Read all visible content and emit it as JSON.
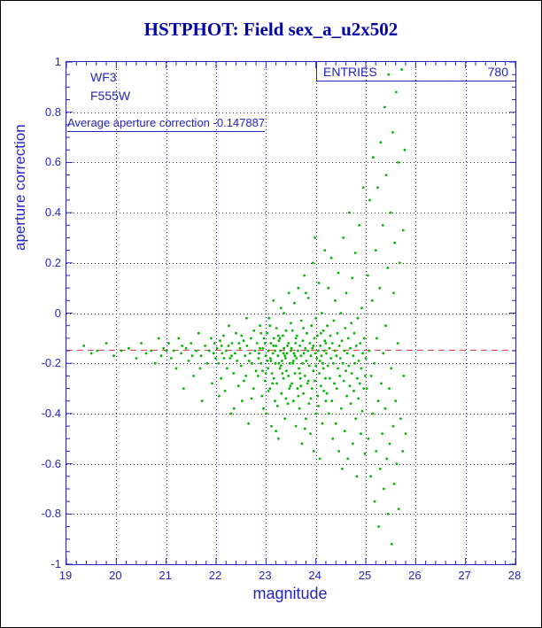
{
  "page": {
    "title": "HSTPHOT: Field sex_a_u2x502"
  },
  "plot": {
    "camera": "WF3",
    "filter": "F555W",
    "avg_text": "Average aperture correction -0.147887"
  },
  "stats_box": {
    "label": "ENTRIES",
    "value": "780"
  },
  "colors": {
    "title": "#0000a6",
    "axis": "#2323c0",
    "grid": "#2323c0",
    "points": "#00b400",
    "refline": "#e03333"
  },
  "chart_data": {
    "type": "scatter",
    "title": "HSTPHOT: Field sex_a_u2x502",
    "xlabel": "magnitude",
    "ylabel": "aperture correction",
    "xlim": [
      19,
      28
    ],
    "ylim": [
      -1,
      1
    ],
    "x_ticks": [
      19,
      20,
      21,
      22,
      23,
      24,
      25,
      26,
      27,
      28
    ],
    "y_ticks": [
      1,
      0.8,
      0.6,
      0.4,
      0.2,
      0,
      -0.2,
      -0.4,
      -0.6,
      -0.8,
      -1
    ],
    "y_tick_labels": [
      "1",
      "0.8",
      "0.6",
      "0.4",
      "0.2",
      "0",
      "-0.2",
      "-0.4",
      "-0.6",
      "-0.8",
      "-1"
    ],
    "grid": "dotted",
    "legend": "none",
    "entries": 780,
    "average_aperture_correction": -0.147887,
    "reference_line": {
      "y": -0.147887,
      "style": "dashed"
    },
    "points": [
      [
        19.35,
        -0.13
      ],
      [
        19.5,
        -0.16
      ],
      [
        19.62,
        -0.15
      ],
      [
        19.8,
        -0.12
      ],
      [
        19.95,
        -0.17
      ],
      [
        20.1,
        -0.15
      ],
      [
        20.25,
        -0.14
      ],
      [
        20.4,
        -0.18
      ],
      [
        20.5,
        -0.12
      ],
      [
        20.6,
        -0.16
      ],
      [
        20.7,
        -0.15
      ],
      [
        20.78,
        -0.2
      ],
      [
        20.85,
        -0.1
      ],
      [
        20.9,
        -0.17
      ],
      [
        20.95,
        -0.14
      ],
      [
        21.0,
        -0.15
      ],
      [
        21.05,
        -0.12
      ],
      [
        21.1,
        -0.18
      ],
      [
        21.15,
        -0.15
      ],
      [
        21.2,
        -0.22
      ],
      [
        21.25,
        -0.1
      ],
      [
        21.3,
        -0.16
      ],
      [
        21.35,
        -0.3
      ],
      [
        21.4,
        -0.14
      ],
      [
        21.45,
        -0.19
      ],
      [
        21.5,
        -0.12
      ],
      [
        21.55,
        -0.25
      ],
      [
        21.6,
        -0.15
      ],
      [
        21.65,
        -0.08
      ],
      [
        21.7,
        -0.17
      ],
      [
        21.72,
        -0.35
      ],
      [
        21.78,
        -0.13
      ],
      [
        21.82,
        -0.2
      ],
      [
        21.86,
        -0.15
      ],
      [
        21.9,
        -0.1
      ],
      [
        21.92,
        -0.28
      ],
      [
        21.95,
        -0.16
      ],
      [
        21.97,
        -0.12
      ],
      [
        21.99,
        -0.18
      ],
      [
        21.52,
        -0.17
      ],
      [
        21.32,
        -0.13
      ],
      [
        21.68,
        -0.22
      ],
      [
        22.02,
        -0.14
      ],
      [
        22.05,
        -0.2
      ],
      [
        22.08,
        -0.11
      ],
      [
        22.1,
        -0.26
      ],
      [
        22.12,
        -0.16
      ],
      [
        22.15,
        -0.09
      ],
      [
        22.18,
        -0.31
      ],
      [
        22.2,
        -0.15
      ],
      [
        22.22,
        -0.22
      ],
      [
        22.25,
        -0.13
      ],
      [
        22.28,
        -0.18
      ],
      [
        22.3,
        -0.4
      ],
      [
        22.32,
        -0.12
      ],
      [
        22.35,
        -0.24
      ],
      [
        22.38,
        -0.16
      ],
      [
        22.4,
        -0.08
      ],
      [
        22.42,
        -0.19
      ],
      [
        22.45,
        -0.29
      ],
      [
        22.48,
        -0.14
      ],
      [
        22.5,
        -0.21
      ],
      [
        22.52,
        -0.35
      ],
      [
        22.55,
        -0.11
      ],
      [
        22.58,
        -0.17
      ],
      [
        22.6,
        -0.25
      ],
      [
        22.62,
        -0.13
      ],
      [
        22.65,
        -0.44
      ],
      [
        22.68,
        -0.16
      ],
      [
        22.7,
        -0.1
      ],
      [
        22.72,
        -0.2
      ],
      [
        22.75,
        -0.3
      ],
      [
        22.78,
        -0.15
      ],
      [
        22.8,
        -0.23
      ],
      [
        22.06,
        -0.33
      ],
      [
        22.16,
        -0.18
      ],
      [
        22.26,
        -0.05
      ],
      [
        22.36,
        -0.38
      ],
      [
        22.46,
        -0.12
      ],
      [
        22.56,
        -0.27
      ],
      [
        22.66,
        -0.19
      ],
      [
        22.76,
        -0.07
      ],
      [
        22.11,
        -0.13
      ],
      [
        22.31,
        -0.17
      ],
      [
        22.51,
        -0.09
      ],
      [
        22.71,
        -0.34
      ],
      [
        22.61,
        -0.02
      ],
      [
        22.82,
        -0.12
      ],
      [
        22.84,
        -0.25
      ],
      [
        22.86,
        -0.16
      ],
      [
        22.88,
        -0.05
      ],
      [
        22.9,
        -0.2
      ],
      [
        22.92,
        -0.33
      ],
      [
        22.94,
        -0.14
      ],
      [
        22.96,
        -0.1
      ],
      [
        22.98,
        -0.27
      ],
      [
        23.0,
        -0.17
      ],
      [
        23.01,
        -0.4
      ],
      [
        23.02,
        -0.08
      ],
      [
        23.04,
        -0.22
      ],
      [
        23.05,
        -0.15
      ],
      [
        23.06,
        -0.02
      ],
      [
        23.08,
        -0.3
      ],
      [
        23.09,
        -0.18
      ],
      [
        23.1,
        -0.12
      ],
      [
        23.11,
        -0.45
      ],
      [
        23.12,
        -0.24
      ],
      [
        23.14,
        -0.16
      ],
      [
        23.15,
        0.05
      ],
      [
        23.16,
        -0.1
      ],
      [
        23.18,
        -0.35
      ],
      [
        23.19,
        -0.2
      ],
      [
        23.2,
        -0.13
      ],
      [
        23.21,
        -0.06
      ],
      [
        23.22,
        -0.28
      ],
      [
        23.24,
        -0.17
      ],
      [
        23.25,
        -0.5
      ],
      [
        23.26,
        -0.11
      ],
      [
        23.28,
        -0.22
      ],
      [
        23.29,
        -0.15
      ],
      [
        23.3,
        0.02
      ],
      [
        23.31,
        -0.32
      ],
      [
        23.32,
        -0.19
      ],
      [
        23.34,
        -0.09
      ],
      [
        23.35,
        -0.26
      ],
      [
        23.36,
        -0.14
      ],
      [
        23.38,
        -0.42
      ],
      [
        23.39,
        -0.18
      ],
      [
        23.4,
        -0.07
      ],
      [
        23.41,
        -0.23
      ],
      [
        23.42,
        -0.16
      ],
      [
        23.44,
        -0.36
      ],
      [
        23.45,
        -0.12
      ],
      [
        23.46,
        0.08
      ],
      [
        23.48,
        -0.2
      ],
      [
        23.49,
        -0.29
      ],
      [
        23.5,
        -0.15
      ],
      [
        22.85,
        -0.18
      ],
      [
        22.9,
        -0.08
      ],
      [
        22.95,
        -0.38
      ],
      [
        23.0,
        -0.24
      ],
      [
        23.05,
        -0.31
      ],
      [
        23.1,
        -0.19
      ],
      [
        23.15,
        -0.13
      ],
      [
        23.2,
        -0.47
      ],
      [
        23.25,
        -0.09
      ],
      [
        23.3,
        -0.21
      ],
      [
        23.35,
        -0.16
      ],
      [
        23.4,
        -0.34
      ],
      [
        23.45,
        -0.25
      ],
      [
        23.5,
        -0.04
      ],
      [
        22.88,
        -0.14
      ],
      [
        22.93,
        -0.23
      ],
      [
        22.98,
        -0.12
      ],
      [
        23.03,
        -0.19
      ],
      [
        23.08,
        -0.05
      ],
      [
        23.13,
        -0.28
      ],
      [
        23.18,
        -0.15
      ],
      [
        23.23,
        -0.37
      ],
      [
        23.28,
        -0.1
      ],
      [
        23.33,
        -0.24
      ],
      [
        23.38,
        -0.17
      ],
      [
        23.43,
        -0.13
      ],
      [
        23.47,
        -0.3
      ],
      [
        23.36,
        0.0
      ],
      [
        23.26,
        -0.2
      ],
      [
        23.16,
        -0.26
      ],
      [
        23.51,
        -0.14
      ],
      [
        23.52,
        -0.28
      ],
      [
        23.53,
        -0.07
      ],
      [
        23.54,
        -0.2
      ],
      [
        23.55,
        -0.35
      ],
      [
        23.56,
        -0.16
      ],
      [
        23.57,
        0.04
      ],
      [
        23.58,
        -0.24
      ],
      [
        23.59,
        -0.12
      ],
      [
        23.6,
        -0.45
      ],
      [
        23.61,
        -0.18
      ],
      [
        23.62,
        -0.09
      ],
      [
        23.63,
        -0.3
      ],
      [
        23.64,
        -0.15
      ],
      [
        23.65,
        0.1
      ],
      [
        23.66,
        -0.22
      ],
      [
        23.67,
        -0.38
      ],
      [
        23.68,
        -0.13
      ],
      [
        23.69,
        -0.26
      ],
      [
        23.7,
        -0.17
      ],
      [
        23.71,
        -0.03
      ],
      [
        23.72,
        -0.52
      ],
      [
        23.73,
        -0.2
      ],
      [
        23.74,
        -0.11
      ],
      [
        23.75,
        -0.32
      ],
      [
        23.76,
        -0.16
      ],
      [
        23.77,
        0.15
      ],
      [
        23.78,
        -0.25
      ],
      [
        23.79,
        -0.14
      ],
      [
        23.8,
        -0.42
      ],
      [
        23.81,
        -0.19
      ],
      [
        23.82,
        -0.08
      ],
      [
        23.83,
        -0.28
      ],
      [
        23.84,
        -0.15
      ],
      [
        23.85,
        0.06
      ],
      [
        23.86,
        -0.36
      ],
      [
        23.87,
        -0.21
      ],
      [
        23.88,
        -0.12
      ],
      [
        23.89,
        -0.48
      ],
      [
        23.9,
        -0.17
      ],
      [
        23.91,
        -0.05
      ],
      [
        23.92,
        -0.3
      ],
      [
        23.93,
        -0.14
      ],
      [
        23.94,
        0.2
      ],
      [
        23.95,
        -0.23
      ],
      [
        23.96,
        -0.55
      ],
      [
        23.97,
        -0.1
      ],
      [
        23.98,
        -0.27
      ],
      [
        23.99,
        -0.16
      ],
      [
        24.0,
        -0.02
      ],
      [
        24.01,
        -0.4
      ],
      [
        24.02,
        -0.18
      ],
      [
        24.03,
        -0.09
      ],
      [
        24.04,
        -0.33
      ],
      [
        24.05,
        -0.15
      ],
      [
        24.06,
        0.12
      ],
      [
        24.07,
        -0.24
      ],
      [
        24.08,
        -0.58
      ],
      [
        24.09,
        -0.13
      ],
      [
        24.1,
        -0.29
      ],
      [
        24.11,
        -0.17
      ],
      [
        24.12,
        0.0
      ],
      [
        24.13,
        -0.44
      ],
      [
        24.14,
        -0.2
      ],
      [
        24.15,
        -0.07
      ],
      [
        24.16,
        -0.31
      ],
      [
        24.17,
        -0.15
      ],
      [
        24.18,
        0.25
      ],
      [
        24.19,
        -0.26
      ],
      [
        24.2,
        -0.12
      ],
      [
        23.55,
        -0.19
      ],
      [
        23.65,
        -0.33
      ],
      [
        23.75,
        -0.06
      ],
      [
        23.85,
        -0.27
      ],
      [
        23.95,
        -0.13
      ],
      [
        24.05,
        -0.37
      ],
      [
        24.15,
        -0.22
      ],
      [
        23.6,
        -0.1
      ],
      [
        23.7,
        -0.29
      ],
      [
        23.8,
        0.08
      ],
      [
        23.9,
        -0.34
      ],
      [
        24.0,
        -0.21
      ],
      [
        24.1,
        -0.08
      ],
      [
        24.2,
        -0.35
      ],
      [
        23.58,
        -0.17
      ],
      [
        23.78,
        -0.46
      ],
      [
        23.98,
        0.3
      ],
      [
        24.08,
        -0.19
      ],
      [
        24.18,
        -0.11
      ],
      [
        23.68,
        -0.24
      ],
      [
        24.21,
        -0.16
      ],
      [
        24.22,
        -0.32
      ],
      [
        24.23,
        -0.05
      ],
      [
        24.24,
        -0.21
      ],
      [
        24.25,
        0.1
      ],
      [
        24.26,
        -0.4
      ],
      [
        24.27,
        -0.14
      ],
      [
        24.28,
        -0.26
      ],
      [
        24.29,
        -0.09
      ],
      [
        24.3,
        -0.18
      ],
      [
        24.31,
        0.22
      ],
      [
        24.32,
        -0.35
      ],
      [
        24.33,
        -0.12
      ],
      [
        24.34,
        -0.5
      ],
      [
        24.35,
        -0.2
      ],
      [
        24.36,
        -0.03
      ],
      [
        24.37,
        -0.28
      ],
      [
        24.38,
        -0.15
      ],
      [
        24.39,
        0.05
      ],
      [
        24.4,
        -0.44
      ],
      [
        24.41,
        -0.17
      ],
      [
        24.42,
        -0.3
      ],
      [
        24.43,
        -0.08
      ],
      [
        24.44,
        -0.22
      ],
      [
        24.45,
        0.16
      ],
      [
        24.46,
        -0.55
      ],
      [
        24.47,
        -0.13
      ],
      [
        24.48,
        -0.25
      ],
      [
        24.49,
        -0.18
      ],
      [
        24.5,
        0.0
      ],
      [
        24.51,
        -0.38
      ],
      [
        24.52,
        -0.11
      ],
      [
        24.53,
        -0.62
      ],
      [
        24.54,
        -0.2
      ],
      [
        24.55,
        0.3
      ],
      [
        24.56,
        -0.27
      ],
      [
        24.57,
        -0.15
      ],
      [
        24.58,
        -0.47
      ],
      [
        24.59,
        -0.06
      ],
      [
        24.6,
        -0.23
      ],
      [
        24.61,
        0.08
      ],
      [
        24.62,
        -0.33
      ],
      [
        24.63,
        -0.16
      ],
      [
        24.64,
        -0.58
      ],
      [
        24.65,
        -0.1
      ],
      [
        24.66,
        -0.21
      ],
      [
        24.67,
        0.4
      ],
      [
        24.68,
        -0.29
      ],
      [
        24.69,
        -0.14
      ],
      [
        24.7,
        -0.36
      ],
      [
        24.71,
        -0.04
      ],
      [
        24.72,
        -0.24
      ],
      [
        24.73,
        0.14
      ],
      [
        24.74,
        -0.52
      ],
      [
        24.75,
        -0.17
      ],
      [
        24.76,
        -0.31
      ],
      [
        24.77,
        -0.08
      ],
      [
        24.78,
        -0.2
      ],
      [
        24.79,
        0.24
      ],
      [
        24.8,
        -0.42
      ],
      [
        24.81,
        -0.13
      ],
      [
        24.82,
        -0.65
      ],
      [
        24.83,
        -0.26
      ],
      [
        24.84,
        -0.02
      ],
      [
        24.85,
        -0.34
      ],
      [
        24.86,
        -0.19
      ],
      [
        24.87,
        0.35
      ],
      [
        24.88,
        -0.28
      ],
      [
        24.89,
        -0.12
      ],
      [
        24.9,
        -0.48
      ],
      [
        24.91,
        -0.22
      ],
      [
        24.92,
        0.02
      ],
      [
        24.93,
        -0.39
      ],
      [
        24.94,
        -0.16
      ],
      [
        24.95,
        0.5
      ],
      [
        24.96,
        -0.3
      ],
      [
        24.97,
        -0.1
      ],
      [
        24.98,
        -0.56
      ],
      [
        24.99,
        -0.25
      ],
      [
        25.0,
        -0.18
      ],
      [
        25.02,
        -0.3
      ],
      [
        25.04,
        0.15
      ],
      [
        25.05,
        -0.5
      ],
      [
        25.07,
        -0.15
      ],
      [
        25.08,
        0.45
      ],
      [
        25.1,
        -0.65
      ],
      [
        25.11,
        -0.25
      ],
      [
        25.13,
        0.05
      ],
      [
        25.14,
        -0.4
      ],
      [
        25.15,
        0.62
      ],
      [
        25.17,
        -0.2
      ],
      [
        25.18,
        -0.75
      ],
      [
        25.2,
        0.25
      ],
      [
        25.21,
        -0.55
      ],
      [
        25.22,
        -0.1
      ],
      [
        25.24,
        0.5
      ],
      [
        25.25,
        -0.35
      ],
      [
        25.26,
        -0.85
      ],
      [
        25.28,
        0.1
      ],
      [
        25.29,
        -0.62
      ],
      [
        25.3,
        0.68
      ],
      [
        25.31,
        -0.28
      ],
      [
        25.33,
        -0.48
      ],
      [
        25.34,
        0.35
      ],
      [
        25.35,
        -0.16
      ],
      [
        25.36,
        -0.7
      ],
      [
        25.38,
        0.82
      ],
      [
        25.39,
        -0.38
      ],
      [
        25.4,
        -0.05
      ],
      [
        25.41,
        0.55
      ],
      [
        25.42,
        -0.58
      ],
      [
        25.44,
        0.18
      ],
      [
        25.45,
        -0.8
      ],
      [
        25.46,
        0.95
      ],
      [
        25.47,
        -0.3
      ],
      [
        25.48,
        -0.52
      ],
      [
        25.5,
        0.4
      ],
      [
        25.51,
        -0.22
      ],
      [
        25.52,
        -0.92
      ],
      [
        25.54,
        0.72
      ],
      [
        25.55,
        -0.45
      ],
      [
        25.56,
        0.08
      ],
      [
        25.57,
        -0.68
      ],
      [
        25.58,
        0.28
      ],
      [
        25.6,
        -0.35
      ],
      [
        25.61,
        0.88
      ],
      [
        25.62,
        -0.6
      ],
      [
        25.64,
        -0.12
      ],
      [
        25.65,
        0.6
      ],
      [
        25.66,
        -0.78
      ],
      [
        25.68,
        0.2
      ],
      [
        25.7,
        -0.42
      ],
      [
        25.72,
        0.97
      ],
      [
        25.74,
        -0.55
      ],
      [
        25.75,
        0.33
      ],
      [
        25.76,
        -0.25
      ],
      [
        25.78,
        0.65
      ],
      [
        25.8,
        -0.48
      ]
    ]
  }
}
